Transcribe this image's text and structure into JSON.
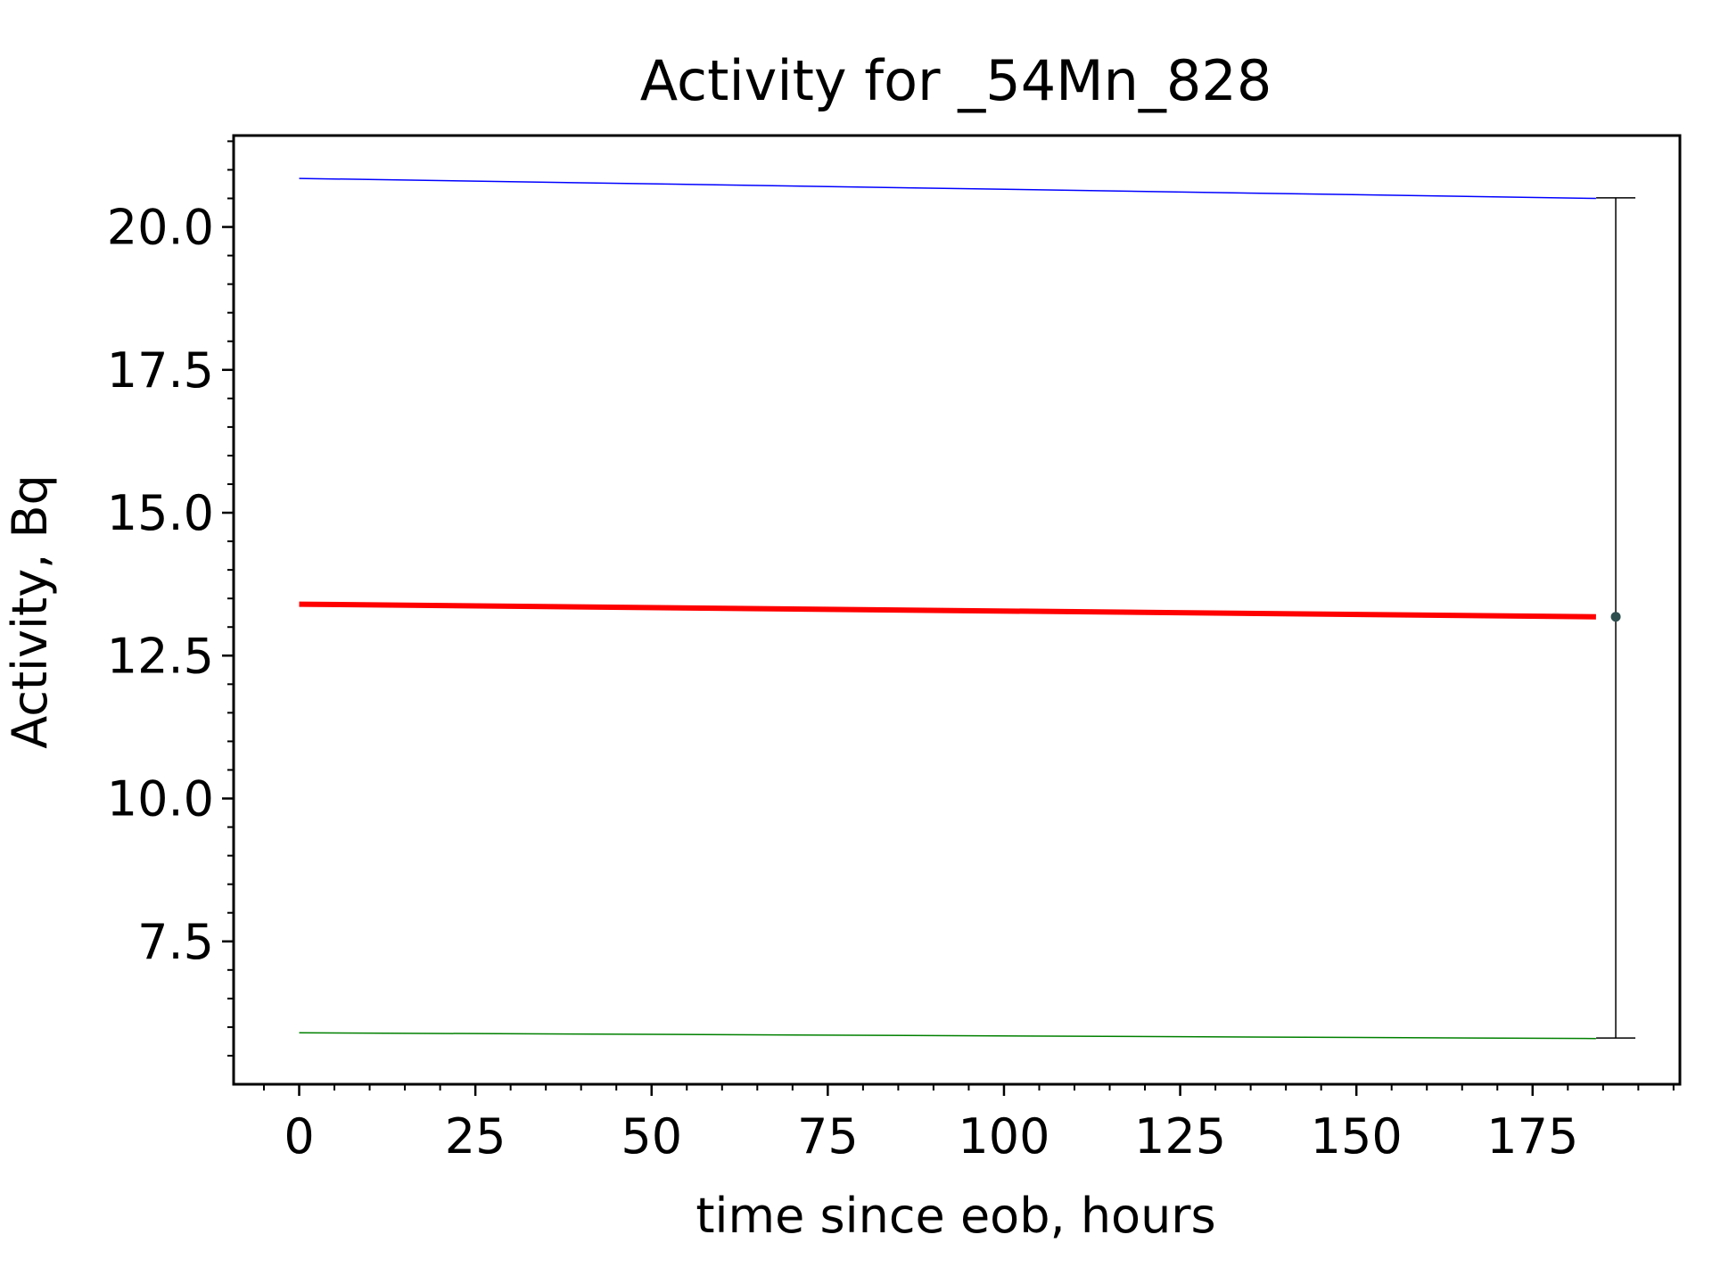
{
  "chart_data": {
    "type": "line",
    "title": "Activity for _54Mn_828",
    "xlabel": "time since eob, hours",
    "ylabel": "Activity, Bq",
    "xlim": [
      -9.3,
      195.9
    ],
    "ylim": [
      5.0,
      21.6
    ],
    "x_ticks": [
      0,
      25,
      50,
      75,
      100,
      125,
      150,
      175
    ],
    "x_tick_labels": [
      "0",
      "25",
      "50",
      "75",
      "100",
      "125",
      "150",
      "175"
    ],
    "y_ticks": [
      7.5,
      10.0,
      12.5,
      15.0,
      17.5,
      20.0
    ],
    "y_tick_labels": [
      "7.5",
      "10.0",
      "12.5",
      "15.0",
      "17.5",
      "20.0"
    ],
    "grid": false,
    "legend": "none",
    "series": [
      {
        "role": "upper-bound",
        "color": "#0000ff",
        "x": [
          0,
          184
        ],
        "y": [
          20.85,
          20.5
        ]
      },
      {
        "role": "fit",
        "color": "#ff0000",
        "x": [
          0,
          184
        ],
        "y": [
          13.4,
          13.18
        ]
      },
      {
        "role": "lower-bound",
        "color": "#008000",
        "x": [
          0,
          184
        ],
        "y": [
          5.9,
          5.8
        ]
      }
    ],
    "measurement": {
      "x": 186.8,
      "y": 13.18,
      "y_error_low": 5.81,
      "y_error_high": 20.51,
      "marker_color": "#2f4f4f",
      "errorbar_color": "#000000"
    }
  }
}
